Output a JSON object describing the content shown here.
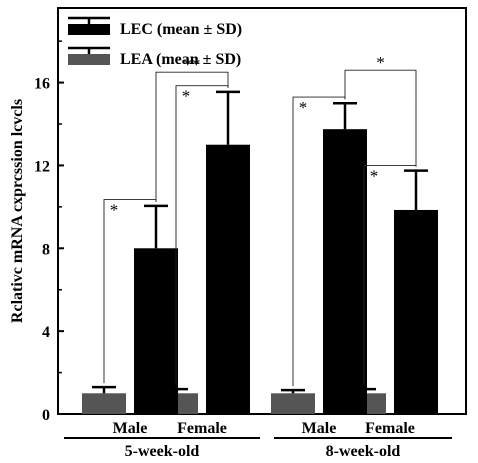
{
  "chart_data": {
    "type": "bar",
    "ylabel": "Rclativc mRNA cxprcssion lcvcls",
    "ylim": [
      0,
      19.6
    ],
    "yticks": [
      0,
      4,
      8,
      12,
      16
    ],
    "grid": false,
    "legend_position": "top-left",
    "categories": [
      "Male",
      "Female",
      "Male",
      "Female"
    ],
    "groups": [
      {
        "label": "5-week-old",
        "categories": [
          "Male",
          "Female"
        ]
      },
      {
        "label": "8-week-old",
        "categories": [
          "Male",
          "Female"
        ]
      }
    ],
    "series": [
      {
        "name": "LEA (mean ±  SD)",
        "color": "#555555",
        "values": [
          1.0,
          1.0,
          1.0,
          1.0
        ],
        "errors": [
          0.3,
          0.2,
          0.15,
          0.2
        ]
      },
      {
        "name": "LEC (mean ±  SD)",
        "color": "#000000",
        "values": [
          8.0,
          13.0,
          13.75,
          9.85
        ],
        "errors": [
          2.05,
          2.55,
          1.25,
          1.9
        ]
      }
    ],
    "significance": [
      {
        "label": "*",
        "x": 0,
        "from": "LEA",
        "to": "LEC",
        "y": 10.35
      },
      {
        "label": "*",
        "x": 1,
        "from": "LEA",
        "to": "LEC",
        "y": 15.85
      },
      {
        "label": "**",
        "x": [
          0,
          1
        ],
        "series": "LEC",
        "y": 16.5
      },
      {
        "label": "*",
        "x": 2,
        "from": "LEA",
        "to": "LEC",
        "y": 15.3
      },
      {
        "label": "*",
        "x": 3,
        "from": "LEA",
        "to": "LEC",
        "y": 12.0
      },
      {
        "label": "*",
        "x": [
          2,
          3
        ],
        "series": "LEC",
        "y": 16.6
      }
    ]
  }
}
